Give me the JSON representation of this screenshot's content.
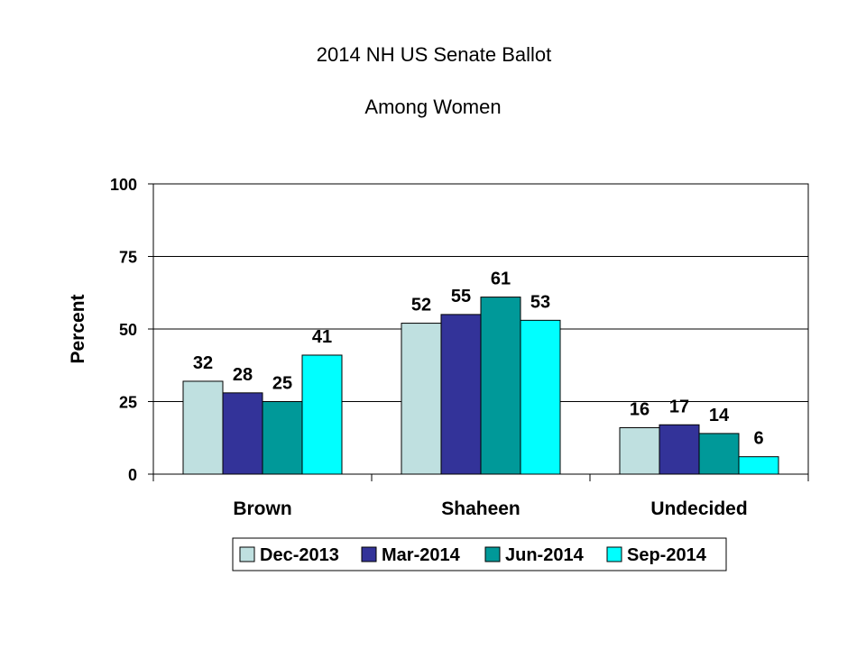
{
  "chart_data": {
    "type": "bar",
    "title": "2014 NH US Senate Ballot",
    "subtitle": "Among Women",
    "xlabel": "",
    "ylabel": "Percent",
    "ylim": [
      0,
      100
    ],
    "yticks": [
      "0",
      "25",
      "50",
      "75",
      "100"
    ],
    "ytick_values": [
      0,
      25,
      50,
      75,
      100
    ],
    "grid": true,
    "legend_position": "bottom",
    "categories": [
      "Brown",
      "Shaheen",
      "Undecided"
    ],
    "series": [
      {
        "name": "Dec-2013",
        "color": "#bfe0e0",
        "values": [
          32,
          52,
          16
        ]
      },
      {
        "name": "Mar-2014",
        "color": "#333399",
        "values": [
          28,
          55,
          17
        ]
      },
      {
        "name": "Jun-2014",
        "color": "#009999",
        "values": [
          25,
          61,
          14
        ]
      },
      {
        "name": "Sep-2014",
        "color": "#00ffff",
        "values": [
          41,
          53,
          6
        ]
      }
    ]
  }
}
